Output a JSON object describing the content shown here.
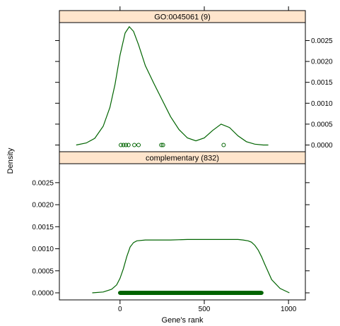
{
  "chart_data": {
    "type": "line",
    "xlabel": "Gene's rank",
    "ylabel": "Density",
    "x_ticks": [
      0,
      500,
      1000
    ],
    "y_ticks": [
      0.0,
      0.0005,
      0.001,
      0.0015,
      0.002,
      0.0025
    ],
    "y_tick_labels": [
      "0.0000",
      "0.0005",
      "0.0010",
      "0.0015",
      "0.0020",
      "0.0025"
    ],
    "xlim": [
      -360,
      1100
    ],
    "ylim": [
      -0.00016,
      0.00293
    ],
    "line_color": "#006400",
    "strip_color": "#ffe5cc",
    "panels": [
      {
        "strip_label": "GO:0045061  (9)",
        "density": {
          "x": [
            -260,
            -200,
            -150,
            -100,
            -60,
            -30,
            0,
            30,
            55,
            80,
            110,
            150,
            200,
            250,
            300,
            350,
            400,
            450,
            500,
            550,
            600,
            650,
            700,
            750,
            800,
            850,
            880
          ],
          "y": [
            0.0,
            5e-05,
            0.00016,
            0.00045,
            0.0009,
            0.00145,
            0.00215,
            0.00268,
            0.00283,
            0.00272,
            0.0024,
            0.0019,
            0.00148,
            0.00108,
            0.00068,
            0.00037,
            0.00017,
            0.0001,
            0.00017,
            0.00035,
            0.0005,
            0.00042,
            0.00022,
            8e-05,
            2e-05,
            0.0,
            0.0
          ]
        },
        "rug_points": [
          5,
          20,
          35,
          50,
          85,
          110,
          245,
          255,
          615
        ]
      },
      {
        "strip_label": "complementary  (832)",
        "density": {
          "x": [
            -165,
            -100,
            -50,
            -20,
            0,
            20,
            40,
            60,
            80,
            100,
            150,
            200,
            300,
            400,
            500,
            600,
            700,
            730,
            760,
            780,
            800,
            820,
            840,
            860,
            880,
            900,
            950,
            1005
          ],
          "y": [
            0.0,
            2e-05,
            8e-05,
            0.00018,
            0.00033,
            0.00055,
            0.00082,
            0.00104,
            0.00114,
            0.00118,
            0.0012,
            0.0012,
            0.0012,
            0.00121,
            0.00121,
            0.00121,
            0.00121,
            0.0012,
            0.00118,
            0.00115,
            0.00108,
            0.00097,
            0.00082,
            0.00064,
            0.00047,
            0.0003,
            0.0001,
            0.0
          ]
        },
        "rug_from": 0,
        "rug_to": 840,
        "rug_count": 832
      }
    ]
  }
}
